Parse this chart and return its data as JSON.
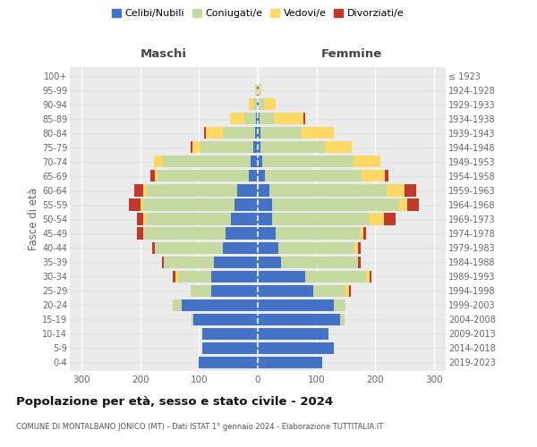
{
  "age_groups": [
    "0-4",
    "5-9",
    "10-14",
    "15-19",
    "20-24",
    "25-29",
    "30-34",
    "35-39",
    "40-44",
    "45-49",
    "50-54",
    "55-59",
    "60-64",
    "65-69",
    "70-74",
    "75-79",
    "80-84",
    "85-89",
    "90-94",
    "95-99",
    "100+"
  ],
  "birth_years": [
    "2019-2023",
    "2014-2018",
    "2009-2013",
    "2004-2008",
    "1999-2003",
    "1994-1998",
    "1989-1993",
    "1984-1988",
    "1979-1983",
    "1974-1978",
    "1969-1973",
    "1964-1968",
    "1959-1963",
    "1954-1958",
    "1949-1953",
    "1944-1948",
    "1939-1943",
    "1934-1938",
    "1929-1933",
    "1924-1928",
    "≤ 1923"
  ],
  "males": {
    "celibi": [
      100,
      95,
      95,
      110,
      130,
      80,
      80,
      75,
      60,
      55,
      45,
      40,
      35,
      15,
      12,
      7,
      4,
      3,
      2,
      1,
      0
    ],
    "coniugati": [
      0,
      0,
      0,
      3,
      15,
      35,
      55,
      85,
      115,
      140,
      145,
      155,
      155,
      155,
      150,
      90,
      55,
      20,
      5,
      2,
      0
    ],
    "vedovi": [
      0,
      0,
      0,
      0,
      0,
      0,
      5,
      0,
      0,
      0,
      5,
      5,
      5,
      5,
      15,
      15,
      30,
      25,
      8,
      2,
      0
    ],
    "divorziati": [
      0,
      0,
      0,
      0,
      0,
      0,
      5,
      3,
      5,
      10,
      10,
      20,
      15,
      8,
      0,
      3,
      3,
      0,
      0,
      0,
      0
    ]
  },
  "females": {
    "nubili": [
      110,
      130,
      120,
      140,
      130,
      95,
      80,
      40,
      35,
      30,
      25,
      25,
      20,
      12,
      8,
      5,
      4,
      3,
      2,
      1,
      0
    ],
    "coniugate": [
      0,
      0,
      0,
      8,
      20,
      55,
      105,
      130,
      130,
      145,
      165,
      215,
      200,
      165,
      155,
      110,
      70,
      25,
      8,
      2,
      0
    ],
    "vedove": [
      0,
      0,
      0,
      0,
      0,
      5,
      5,
      0,
      5,
      5,
      25,
      15,
      30,
      40,
      45,
      45,
      55,
      50,
      20,
      3,
      0
    ],
    "divorziate": [
      0,
      0,
      0,
      0,
      0,
      3,
      3,
      5,
      5,
      5,
      20,
      20,
      20,
      5,
      0,
      0,
      0,
      3,
      0,
      0,
      0
    ]
  },
  "colors": {
    "celibi": "#4472C4",
    "coniugati": "#C5D9A0",
    "vedovi": "#FFD966",
    "divorziati": "#C0392B"
  },
  "xlim": 320,
  "title": "Popolazione per età, sesso e stato civile - 2024",
  "subtitle": "COMUNE DI MONTALBANO JONICO (MT) - Dati ISTAT 1° gennaio 2024 - Elaborazione TUTTITALIA.IT",
  "ylabel_left": "Fasce di età",
  "legend_labels": [
    "Celibi/Nubili",
    "Coniugati/e",
    "Vedovi/e",
    "Divorziati/e"
  ]
}
